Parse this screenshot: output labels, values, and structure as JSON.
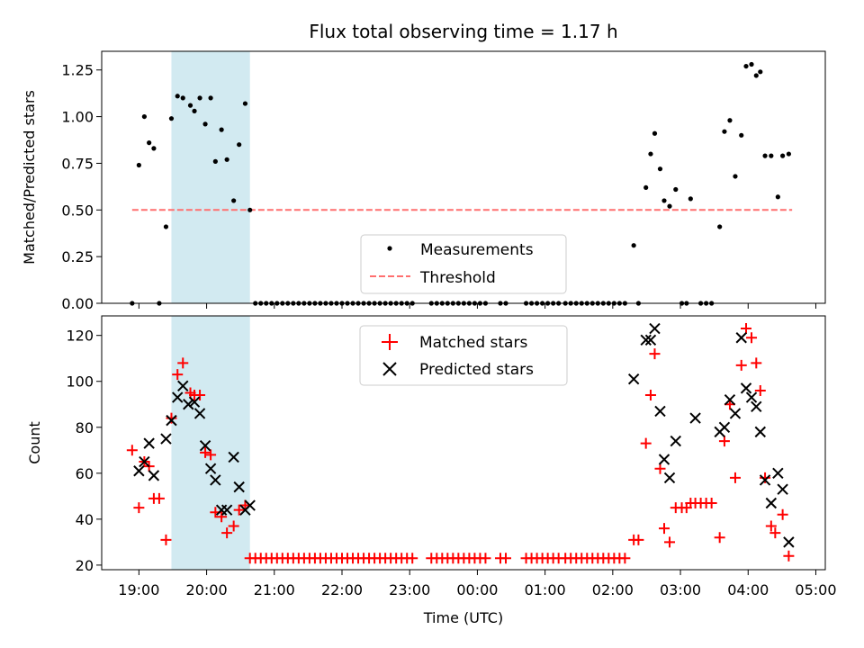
{
  "chart_data": {
    "title": "Flux total observing time = 1.17 h",
    "xlabel": "Time (UTC)",
    "x_unit": "hours since 19:00 UTC",
    "x_ticks": [
      {
        "v": 0,
        "label": "19:00"
      },
      {
        "v": 1,
        "label": "20:00"
      },
      {
        "v": 2,
        "label": "21:00"
      },
      {
        "v": 3,
        "label": "22:00"
      },
      {
        "v": 4,
        "label": "23:00"
      },
      {
        "v": 5,
        "label": "00:00"
      },
      {
        "v": 6,
        "label": "01:00"
      },
      {
        "v": 7,
        "label": "02:00"
      },
      {
        "v": 8,
        "label": "03:00"
      },
      {
        "v": 9,
        "label": "04:00"
      },
      {
        "v": 10,
        "label": "05:00"
      }
    ],
    "xlim": [
      -0.55,
      10.14
    ],
    "shaded_span": [
      0.48,
      1.64
    ],
    "colors": {
      "shade": "#add8e6",
      "measure": "#000000",
      "threshold": "#ff6f6f",
      "matched": "#ff0000",
      "predicted": "#000000"
    },
    "top": {
      "type": "scatter",
      "ylabel": "Matched/Predicted stars",
      "ylim": [
        0,
        1.35
      ],
      "y_ticks": [
        {
          "v": 0,
          "label": "0.00"
        },
        {
          "v": 0.25,
          "label": "0.25"
        },
        {
          "v": 0.5,
          "label": "0.50"
        },
        {
          "v": 0.75,
          "label": "0.75"
        },
        {
          "v": 1.0,
          "label": "1.00"
        },
        {
          "v": 1.25,
          "label": "1.25"
        }
      ],
      "threshold": {
        "value": 0.5,
        "x_range": [
          -0.1,
          9.65
        ]
      },
      "legend": {
        "location": "lower-center",
        "measurements": "Measurements",
        "threshold": "Threshold"
      },
      "measurements": [
        [
          -0.1,
          0.0
        ],
        [
          0.0,
          0.74
        ],
        [
          0.08,
          1.0
        ],
        [
          0.15,
          0.86
        ],
        [
          0.22,
          0.83
        ],
        [
          0.3,
          0.0
        ],
        [
          0.4,
          0.41
        ],
        [
          0.48,
          0.99
        ],
        [
          0.57,
          1.11
        ],
        [
          0.65,
          1.1
        ],
        [
          0.76,
          1.06
        ],
        [
          0.82,
          1.03
        ],
        [
          0.9,
          1.1
        ],
        [
          0.98,
          0.96
        ],
        [
          1.06,
          1.1
        ],
        [
          1.13,
          0.76
        ],
        [
          1.22,
          0.93
        ],
        [
          1.3,
          0.77
        ],
        [
          1.4,
          0.55
        ],
        [
          1.48,
          0.85
        ],
        [
          1.57,
          1.07
        ],
        [
          1.64,
          0.5
        ],
        [
          1.72,
          0.0
        ],
        [
          1.8,
          0.0
        ],
        [
          1.88,
          0.0
        ],
        [
          1.96,
          0.0
        ],
        [
          2.04,
          0.0
        ],
        [
          2.12,
          0.0
        ],
        [
          2.2,
          0.0
        ],
        [
          2.28,
          0.0
        ],
        [
          2.36,
          0.0
        ],
        [
          2.44,
          0.0
        ],
        [
          2.52,
          0.0
        ],
        [
          2.6,
          0.0
        ],
        [
          2.68,
          0.0
        ],
        [
          2.76,
          0.0
        ],
        [
          2.84,
          0.0
        ],
        [
          2.92,
          0.0
        ],
        [
          3.0,
          0.0
        ],
        [
          3.08,
          0.0
        ],
        [
          3.16,
          0.0
        ],
        [
          3.24,
          0.0
        ],
        [
          3.32,
          0.0
        ],
        [
          3.4,
          0.0
        ],
        [
          3.48,
          0.0
        ],
        [
          3.56,
          0.0
        ],
        [
          3.64,
          0.0
        ],
        [
          3.72,
          0.0
        ],
        [
          3.8,
          0.0
        ],
        [
          3.88,
          0.0
        ],
        [
          3.96,
          0.0
        ],
        [
          4.04,
          0.0
        ],
        [
          4.32,
          0.0
        ],
        [
          4.4,
          0.0
        ],
        [
          4.48,
          0.0
        ],
        [
          4.56,
          0.0
        ],
        [
          4.64,
          0.0
        ],
        [
          4.72,
          0.0
        ],
        [
          4.8,
          0.0
        ],
        [
          4.88,
          0.0
        ],
        [
          4.96,
          0.0
        ],
        [
          5.04,
          0.0
        ],
        [
          5.12,
          0.0
        ],
        [
          5.34,
          0.0
        ],
        [
          5.42,
          0.0
        ],
        [
          5.72,
          0.0
        ],
        [
          5.8,
          0.0
        ],
        [
          5.88,
          0.0
        ],
        [
          5.96,
          0.0
        ],
        [
          6.04,
          0.0
        ],
        [
          6.12,
          0.0
        ],
        [
          6.2,
          0.0
        ],
        [
          6.3,
          0.0
        ],
        [
          6.38,
          0.0
        ],
        [
          6.46,
          0.0
        ],
        [
          6.54,
          0.0
        ],
        [
          6.62,
          0.0
        ],
        [
          6.7,
          0.0
        ],
        [
          6.78,
          0.0
        ],
        [
          6.86,
          0.0
        ],
        [
          6.94,
          0.0
        ],
        [
          7.02,
          0.0
        ],
        [
          7.1,
          0.0
        ],
        [
          7.18,
          0.0
        ],
        [
          7.31,
          0.31
        ],
        [
          7.38,
          0.0
        ],
        [
          7.49,
          0.62
        ],
        [
          7.56,
          0.8
        ],
        [
          7.62,
          0.91
        ],
        [
          7.7,
          0.72
        ],
        [
          7.76,
          0.55
        ],
        [
          7.84,
          0.52
        ],
        [
          7.93,
          0.61
        ],
        [
          8.02,
          0.0
        ],
        [
          8.09,
          0.0
        ],
        [
          8.15,
          0.56
        ],
        [
          8.3,
          0.0
        ],
        [
          8.38,
          0.0
        ],
        [
          8.46,
          0.0
        ],
        [
          8.58,
          0.41
        ],
        [
          8.65,
          0.92
        ],
        [
          8.73,
          0.98
        ],
        [
          8.81,
          0.68
        ],
        [
          8.9,
          0.9
        ],
        [
          8.97,
          1.27
        ],
        [
          9.05,
          1.28
        ],
        [
          9.12,
          1.22
        ],
        [
          9.18,
          1.24
        ],
        [
          9.25,
          0.79
        ],
        [
          9.34,
          0.79
        ],
        [
          9.44,
          0.57
        ],
        [
          9.51,
          0.79
        ],
        [
          9.6,
          0.8
        ]
      ]
    },
    "bottom": {
      "type": "scatter",
      "ylabel": "Count",
      "ylim": [
        18,
        128.5
      ],
      "y_ticks": [
        {
          "v": 20,
          "label": "20"
        },
        {
          "v": 40,
          "label": "40"
        },
        {
          "v": 60,
          "label": "60"
        },
        {
          "v": 80,
          "label": "80"
        },
        {
          "v": 100,
          "label": "100"
        },
        {
          "v": 120,
          "label": "120"
        }
      ],
      "legend": {
        "location": "top-center",
        "matched": "Matched stars",
        "predicted": "Predicted stars"
      },
      "matched": [
        [
          -0.1,
          70
        ],
        [
          0.0,
          45
        ],
        [
          0.08,
          65
        ],
        [
          0.15,
          63
        ],
        [
          0.22,
          49
        ],
        [
          0.3,
          49
        ],
        [
          0.4,
          31
        ],
        [
          0.48,
          84
        ],
        [
          0.57,
          103
        ],
        [
          0.65,
          108
        ],
        [
          0.76,
          95
        ],
        [
          0.82,
          94
        ],
        [
          0.9,
          94
        ],
        [
          0.98,
          69
        ],
        [
          1.06,
          68
        ],
        [
          1.13,
          43
        ],
        [
          1.22,
          41
        ],
        [
          1.3,
          34
        ],
        [
          1.4,
          37
        ],
        [
          1.48,
          44
        ],
        [
          1.57,
          46
        ],
        [
          1.64,
          23
        ],
        [
          1.72,
          23
        ],
        [
          1.8,
          23
        ],
        [
          1.88,
          23
        ],
        [
          1.96,
          23
        ],
        [
          2.04,
          23
        ],
        [
          2.12,
          23
        ],
        [
          2.2,
          23
        ],
        [
          2.28,
          23
        ],
        [
          2.36,
          23
        ],
        [
          2.44,
          23
        ],
        [
          2.52,
          23
        ],
        [
          2.6,
          23
        ],
        [
          2.68,
          23
        ],
        [
          2.76,
          23
        ],
        [
          2.84,
          23
        ],
        [
          2.92,
          23
        ],
        [
          3.0,
          23
        ],
        [
          3.08,
          23
        ],
        [
          3.16,
          23
        ],
        [
          3.24,
          23
        ],
        [
          3.32,
          23
        ],
        [
          3.4,
          23
        ],
        [
          3.48,
          23
        ],
        [
          3.56,
          23
        ],
        [
          3.64,
          23
        ],
        [
          3.72,
          23
        ],
        [
          3.8,
          23
        ],
        [
          3.88,
          23
        ],
        [
          3.96,
          23
        ],
        [
          4.04,
          23
        ],
        [
          4.32,
          23
        ],
        [
          4.4,
          23
        ],
        [
          4.48,
          23
        ],
        [
          4.56,
          23
        ],
        [
          4.64,
          23
        ],
        [
          4.72,
          23
        ],
        [
          4.8,
          23
        ],
        [
          4.88,
          23
        ],
        [
          4.96,
          23
        ],
        [
          5.04,
          23
        ],
        [
          5.12,
          23
        ],
        [
          5.34,
          23
        ],
        [
          5.42,
          23
        ],
        [
          5.72,
          23
        ],
        [
          5.8,
          23
        ],
        [
          5.88,
          23
        ],
        [
          5.96,
          23
        ],
        [
          6.04,
          23
        ],
        [
          6.12,
          23
        ],
        [
          6.2,
          23
        ],
        [
          6.3,
          23
        ],
        [
          6.38,
          23
        ],
        [
          6.46,
          23
        ],
        [
          6.54,
          23
        ],
        [
          6.62,
          23
        ],
        [
          6.7,
          23
        ],
        [
          6.78,
          23
        ],
        [
          6.86,
          23
        ],
        [
          6.94,
          23
        ],
        [
          7.02,
          23
        ],
        [
          7.1,
          23
        ],
        [
          7.18,
          23
        ],
        [
          7.31,
          31
        ],
        [
          7.38,
          31
        ],
        [
          7.49,
          73
        ],
        [
          7.56,
          94
        ],
        [
          7.62,
          112
        ],
        [
          7.7,
          62
        ],
        [
          7.76,
          36
        ],
        [
          7.84,
          30
        ],
        [
          7.93,
          45
        ],
        [
          8.02,
          45
        ],
        [
          8.09,
          45
        ],
        [
          8.15,
          47
        ],
        [
          8.22,
          47
        ],
        [
          8.3,
          47
        ],
        [
          8.38,
          47
        ],
        [
          8.46,
          47
        ],
        [
          8.58,
          32
        ],
        [
          8.65,
          74
        ],
        [
          8.73,
          90
        ],
        [
          8.81,
          58
        ],
        [
          8.9,
          107
        ],
        [
          8.97,
          123
        ],
        [
          9.05,
          119
        ],
        [
          9.12,
          108
        ],
        [
          9.18,
          96
        ],
        [
          9.25,
          58
        ],
        [
          9.34,
          37
        ],
        [
          9.4,
          34
        ],
        [
          9.51,
          42
        ],
        [
          9.6,
          24
        ]
      ],
      "predicted": [
        [
          0.0,
          61
        ],
        [
          0.08,
          65
        ],
        [
          0.15,
          73
        ],
        [
          0.22,
          59
        ],
        [
          0.4,
          75
        ],
        [
          0.48,
          83
        ],
        [
          0.57,
          93
        ],
        [
          0.65,
          98
        ],
        [
          0.73,
          90
        ],
        [
          0.82,
          91
        ],
        [
          0.9,
          86
        ],
        [
          0.98,
          72
        ],
        [
          1.06,
          62
        ],
        [
          1.13,
          57
        ],
        [
          1.22,
          44
        ],
        [
          1.3,
          44
        ],
        [
          1.4,
          67
        ],
        [
          1.48,
          54
        ],
        [
          1.57,
          44
        ],
        [
          1.64,
          46
        ],
        [
          7.31,
          101
        ],
        [
          7.49,
          118
        ],
        [
          7.56,
          118
        ],
        [
          7.62,
          123
        ],
        [
          7.7,
          87
        ],
        [
          7.76,
          66
        ],
        [
          7.84,
          58
        ],
        [
          7.93,
          74
        ],
        [
          8.22,
          84
        ],
        [
          8.58,
          78
        ],
        [
          8.65,
          80
        ],
        [
          8.73,
          92
        ],
        [
          8.81,
          86
        ],
        [
          8.9,
          119
        ],
        [
          8.97,
          97
        ],
        [
          9.05,
          93
        ],
        [
          9.12,
          89
        ],
        [
          9.18,
          78
        ],
        [
          9.25,
          57
        ],
        [
          9.34,
          47
        ],
        [
          9.44,
          60
        ],
        [
          9.51,
          53
        ],
        [
          9.6,
          30
        ]
      ]
    }
  }
}
